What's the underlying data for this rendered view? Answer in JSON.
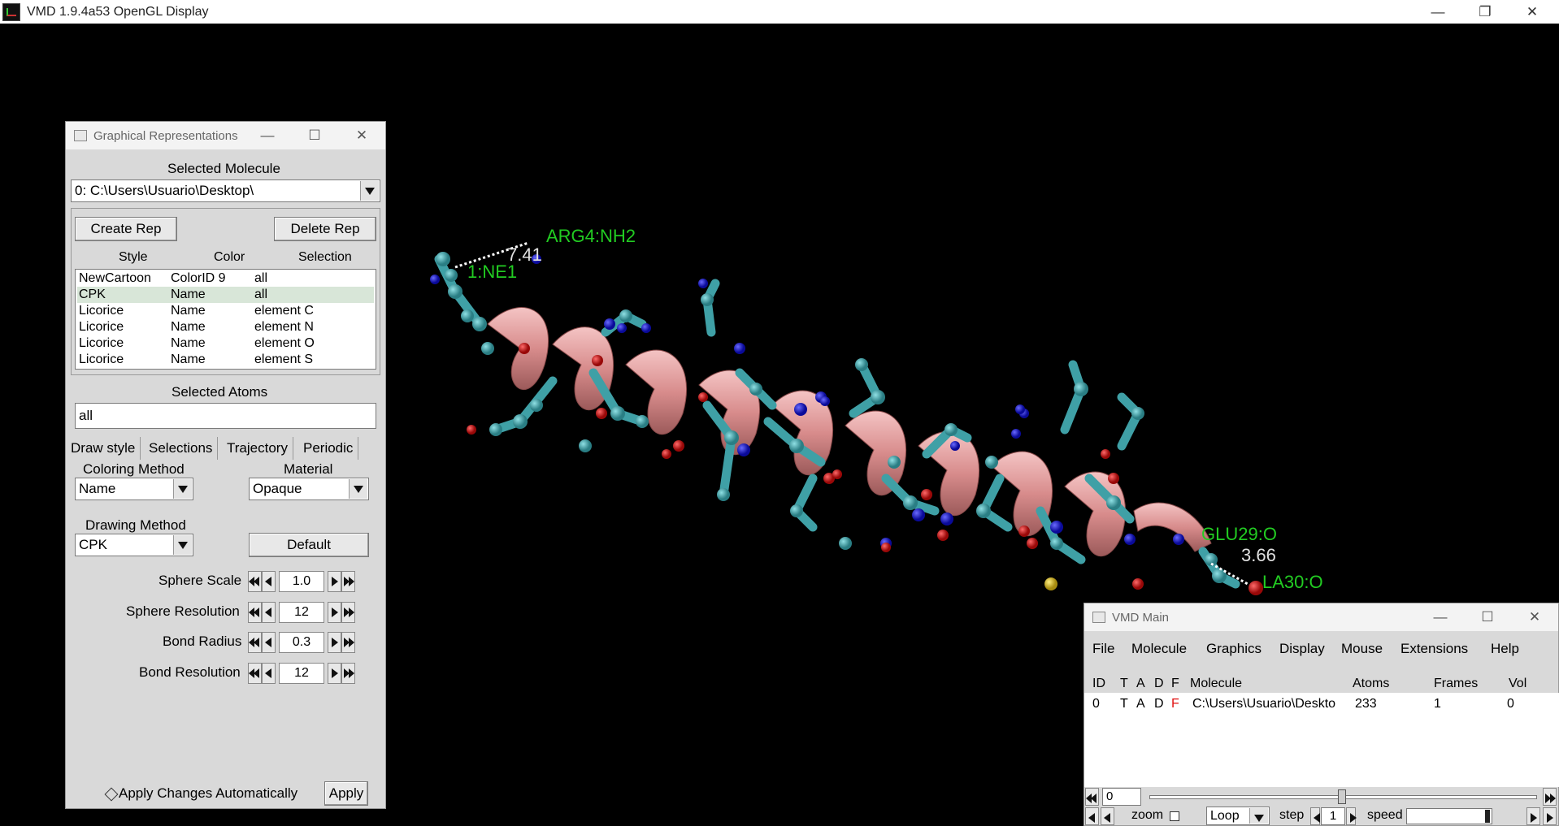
{
  "window": {
    "title": "VMD 1.9.4a53 OpenGL Display"
  },
  "scene": {
    "labels": {
      "arg4": "ARG4:NH2",
      "dist1": "7.41",
      "ne1": "1:NE1",
      "glu29": "GLU29:O",
      "dist2": "3.66",
      "ala30": "LA30:O"
    },
    "colors": {
      "ribbon": "#e8a0a0",
      "carbon": "#3fa0a6",
      "nitrogen": "#1a1acc",
      "oxygen": "#cc1111",
      "sulfur": "#d8c020",
      "label": "#22cc22"
    }
  },
  "graphrep": {
    "title": "Graphical Representations",
    "selected_molecule_label": "Selected Molecule",
    "molecule": "0: C:\\Users\\Usuario\\Desktop\\",
    "create_rep": "Create Rep",
    "delete_rep": "Delete Rep",
    "columns": [
      "Style",
      "Color",
      "Selection"
    ],
    "reps": [
      {
        "style": "NewCartoon",
        "color": "ColorID 9",
        "selection": "all"
      },
      {
        "style": "CPK",
        "color": "Name",
        "selection": "all"
      },
      {
        "style": "Licorice",
        "color": "Name",
        "selection": "element C"
      },
      {
        "style": "Licorice",
        "color": "Name",
        "selection": "element N"
      },
      {
        "style": "Licorice",
        "color": "Name",
        "selection": "element O"
      },
      {
        "style": "Licorice",
        "color": "Name",
        "selection": "element S"
      }
    ],
    "selected_atoms_label": "Selected Atoms",
    "selected_atoms": "all",
    "tabs": [
      "Draw style",
      "Selections",
      "Trajectory",
      "Periodic"
    ],
    "coloring_method_label": "Coloring Method",
    "coloring_method": "Name",
    "material_label": "Material",
    "material": "Opaque",
    "drawing_method_label": "Drawing Method",
    "drawing_method": "CPK",
    "default_button": "Default",
    "params": [
      {
        "label": "Sphere Scale",
        "value": "1.0"
      },
      {
        "label": "Sphere Resolution",
        "value": "12"
      },
      {
        "label": "Bond Radius",
        "value": "0.3"
      },
      {
        "label": "Bond Resolution",
        "value": "12"
      }
    ],
    "apply_auto": "Apply Changes Automatically",
    "apply": "Apply"
  },
  "vmdmain": {
    "title": "VMD Main",
    "menu": [
      "File",
      "Molecule",
      "Graphics",
      "Display",
      "Mouse",
      "Extensions",
      "Help"
    ],
    "headers": {
      "id": "ID",
      "t": "T",
      "a": "A",
      "d": "D",
      "f": "F",
      "molecule": "Molecule",
      "atoms": "Atoms",
      "frames": "Frames",
      "vol": "Vol"
    },
    "row": {
      "id": "0",
      "t": "T",
      "a": "A",
      "d": "D",
      "f": "F",
      "molecule": "C:\\Users\\Usuario\\Deskto",
      "atoms": "233",
      "frames": "1",
      "vol": "0"
    },
    "frame": "0",
    "zoom": "zoom",
    "loop": "Loop",
    "step_label": "step",
    "step": "1",
    "speed": "speed"
  }
}
